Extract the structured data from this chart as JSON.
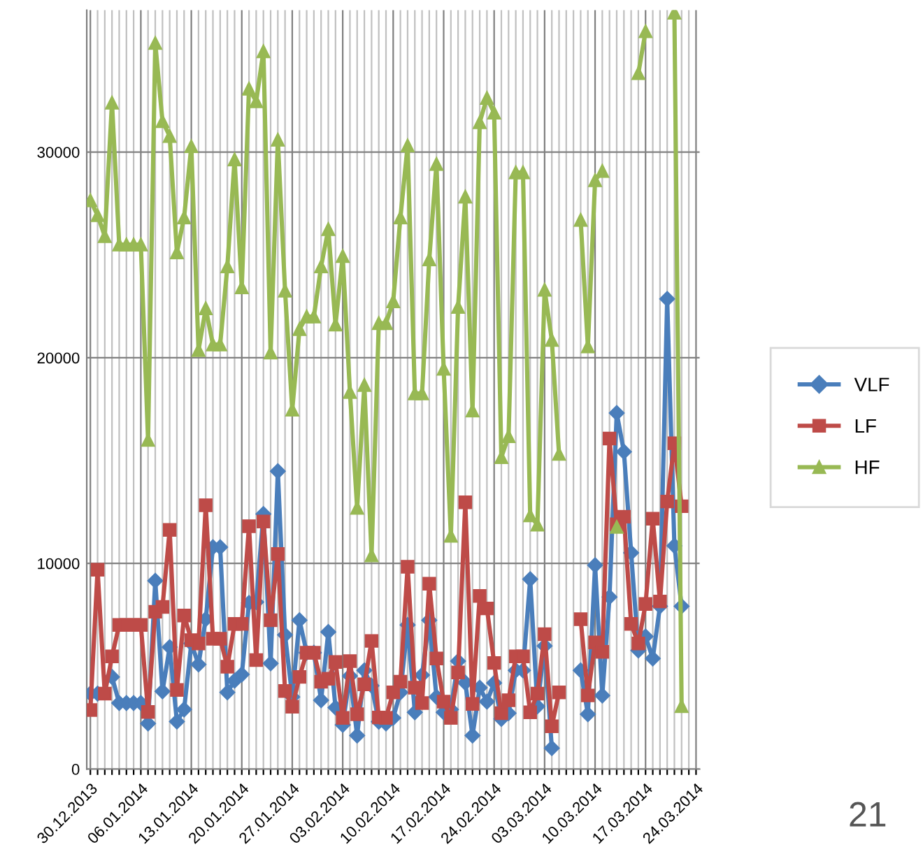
{
  "chart_data": {
    "type": "line",
    "categories": [
      "30.12.2013",
      null,
      null,
      null,
      null,
      null,
      null,
      "06.01.2014",
      null,
      null,
      null,
      null,
      null,
      null,
      "13.01.2014",
      null,
      null,
      null,
      null,
      null,
      null,
      "20.01.2014",
      null,
      null,
      null,
      null,
      null,
      null,
      "27.01.2014",
      null,
      null,
      null,
      null,
      null,
      null,
      "03.02.2014",
      null,
      null,
      null,
      null,
      null,
      null,
      "10.02.2014",
      null,
      null,
      null,
      null,
      null,
      null,
      "17.02.2014",
      null,
      null,
      null,
      null,
      null,
      null,
      "24.02.2014",
      null,
      null,
      null,
      null,
      null,
      null,
      "03.03.2014",
      null,
      null,
      null,
      null,
      null,
      null,
      "10.03.2014",
      null,
      null,
      null,
      null,
      null,
      null,
      "17.03.2014",
      null,
      null,
      null,
      null,
      null,
      null,
      "24.03.2014"
    ],
    "series": [
      {
        "name": "VLF",
        "color": "#4a7ebb",
        "marker": "diamond",
        "values": [
          3670,
          3670,
          null,
          4480,
          3210,
          3210,
          3210,
          3210,
          2220,
          9160,
          3780,
          5930,
          2310,
          2900,
          6110,
          5090,
          7290,
          10790,
          10790,
          3730,
          4300,
          4600,
          8080,
          8120,
          12400,
          5140,
          14480,
          6520,
          3510,
          7240,
          5660,
          5660,
          3350,
          6670,
          2990,
          2150,
          4530,
          1630,
          4800,
          4050,
          2300,
          2220,
          2490,
          3730,
          7010,
          2760,
          4570,
          7240,
          3510,
          2760,
          2900,
          5250,
          4200,
          1630,
          3960,
          3280,
          4190,
          2440,
          2720,
          4800,
          4800,
          9230,
          3050,
          5990,
          1020,
          null,
          null,
          null,
          4800,
          2670,
          9910,
          3580,
          8370,
          17310,
          15430,
          10520,
          5770,
          6450,
          5380,
          7920,
          22860,
          10860,
          7920,
          null,
          null
        ]
      },
      {
        "name": "LF",
        "color": "#be4b48",
        "marker": "square",
        "values": [
          2870,
          9690,
          3670,
          5480,
          7010,
          7010,
          7010,
          7010,
          2780,
          7650,
          7880,
          11630,
          3850,
          7470,
          6270,
          6110,
          12830,
          6340,
          6340,
          4980,
          7060,
          7060,
          11810,
          5300,
          12040,
          7240,
          10460,
          3800,
          3030,
          4480,
          5660,
          5660,
          4250,
          4390,
          5210,
          2490,
          5250,
          2670,
          4120,
          6230,
          2510,
          2490,
          3730,
          4250,
          9840,
          3960,
          3210,
          9010,
          5380,
          3280,
          2490,
          4700,
          12970,
          3170,
          8420,
          7810,
          5160,
          2720,
          3350,
          5480,
          5480,
          2760,
          3670,
          6560,
          2080,
          3730,
          null,
          null,
          7290,
          3580,
          6160,
          5700,
          16070,
          11900,
          12270,
          7060,
          6110,
          8030,
          12170,
          8150,
          13010,
          15840,
          12780,
          null,
          null
        ]
      },
      {
        "name": "HF",
        "color": "#98b954",
        "marker": "triangle",
        "values": [
          27650,
          26930,
          25910,
          32400,
          25500,
          25500,
          25500,
          25500,
          16000,
          35300,
          31500,
          30780,
          25120,
          26820,
          30280,
          20370,
          22400,
          20640,
          20640,
          24440,
          29640,
          23420,
          33080,
          32470,
          34900,
          20250,
          30600,
          23260,
          17470,
          21390,
          22000,
          22000,
          24440,
          26250,
          21610,
          24940,
          18330,
          12700,
          18670,
          10390,
          21680,
          21680,
          22740,
          26820,
          30320,
          18260,
          18260,
          24780,
          29420,
          19460,
          11340,
          22470,
          27830,
          17430,
          31450,
          32630,
          31910,
          15160,
          16180,
          29010,
          29010,
          12330,
          11880,
          23300,
          20860,
          15320,
          null,
          null,
          26700,
          20550,
          28630,
          29080,
          null,
          11770,
          null,
          null,
          33830,
          35870,
          null,
          null,
          null,
          36770,
          3060,
          null,
          null
        ]
      }
    ],
    "ylim": [
      0,
      36900
    ],
    "yticks": [
      0,
      10000,
      20000,
      30000
    ],
    "grid": true,
    "legend": "right",
    "line_style": "solid",
    "annotations": [
      "21"
    ]
  }
}
